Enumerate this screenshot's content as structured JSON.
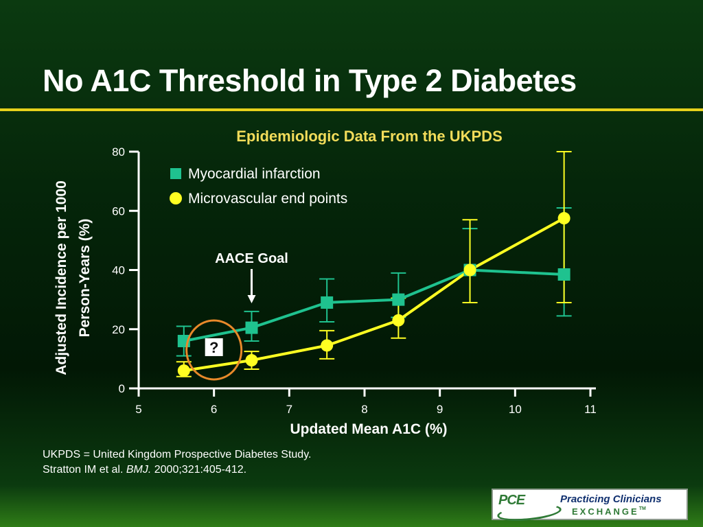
{
  "slide": {
    "title": "No A1C Threshold in Type 2 Diabetes",
    "footnote_line1": "UKPDS = United Kingdom Prospective Diabetes Study.",
    "footnote_line2_authors": "Stratton IM et al.",
    "footnote_line2_journal": "BMJ.",
    "footnote_line2_citation": "2000;321:405-412.",
    "logo": {
      "mark": "PCE",
      "line1": "Practicing Clinicians",
      "line2": "EXCHANGE",
      "tm": "TM"
    }
  },
  "chart_data": {
    "type": "line",
    "title": "Epidemiologic Data From the UKPDS",
    "xlabel": "Updated Mean A1C (%)",
    "ylabel": [
      "Adjusted Incidence per 1000",
      "Person-Years (%)"
    ],
    "xlim": [
      5,
      11
    ],
    "ylim": [
      0,
      80
    ],
    "xticks": [
      5,
      6,
      7,
      8,
      9,
      10,
      11
    ],
    "yticks": [
      0,
      20,
      40,
      60,
      80
    ],
    "grid": false,
    "legend_position": "top-left",
    "series": [
      {
        "name": "Myocardial infarction",
        "marker": "square",
        "color": "#1fc28f",
        "points": [
          {
            "x": 5.6,
            "y": 16,
            "lo": 11,
            "hi": 21
          },
          {
            "x": 6.5,
            "y": 20.5,
            "lo": 16,
            "hi": 26
          },
          {
            "x": 7.5,
            "y": 29,
            "lo": 22.5,
            "hi": 37
          },
          {
            "x": 8.45,
            "y": 30,
            "lo": 24,
            "hi": 39
          },
          {
            "x": 9.4,
            "y": 40,
            "lo": 29,
            "hi": 54
          },
          {
            "x": 10.65,
            "y": 38.5,
            "lo": 24.5,
            "hi": 61
          }
        ]
      },
      {
        "name": "Microvascular end points",
        "marker": "circle",
        "color": "#ffff22",
        "points": [
          {
            "x": 5.6,
            "y": 6,
            "lo": 4,
            "hi": 9
          },
          {
            "x": 6.5,
            "y": 9.5,
            "lo": 6.5,
            "hi": 12.5
          },
          {
            "x": 7.5,
            "y": 14.5,
            "lo": 10,
            "hi": 19.5
          },
          {
            "x": 8.45,
            "y": 23,
            "lo": 17,
            "hi": 30.5
          },
          {
            "x": 9.4,
            "y": 40,
            "lo": 29,
            "hi": 57
          },
          {
            "x": 10.65,
            "y": 57.5,
            "lo": 29,
            "hi": 80
          }
        ]
      }
    ],
    "annotations": {
      "goal_label": "AACE Goal",
      "goal_x": 6.5,
      "question_mark": "?",
      "question_x": 6.0,
      "question_y": 13,
      "question_color": "#e8892a"
    }
  }
}
